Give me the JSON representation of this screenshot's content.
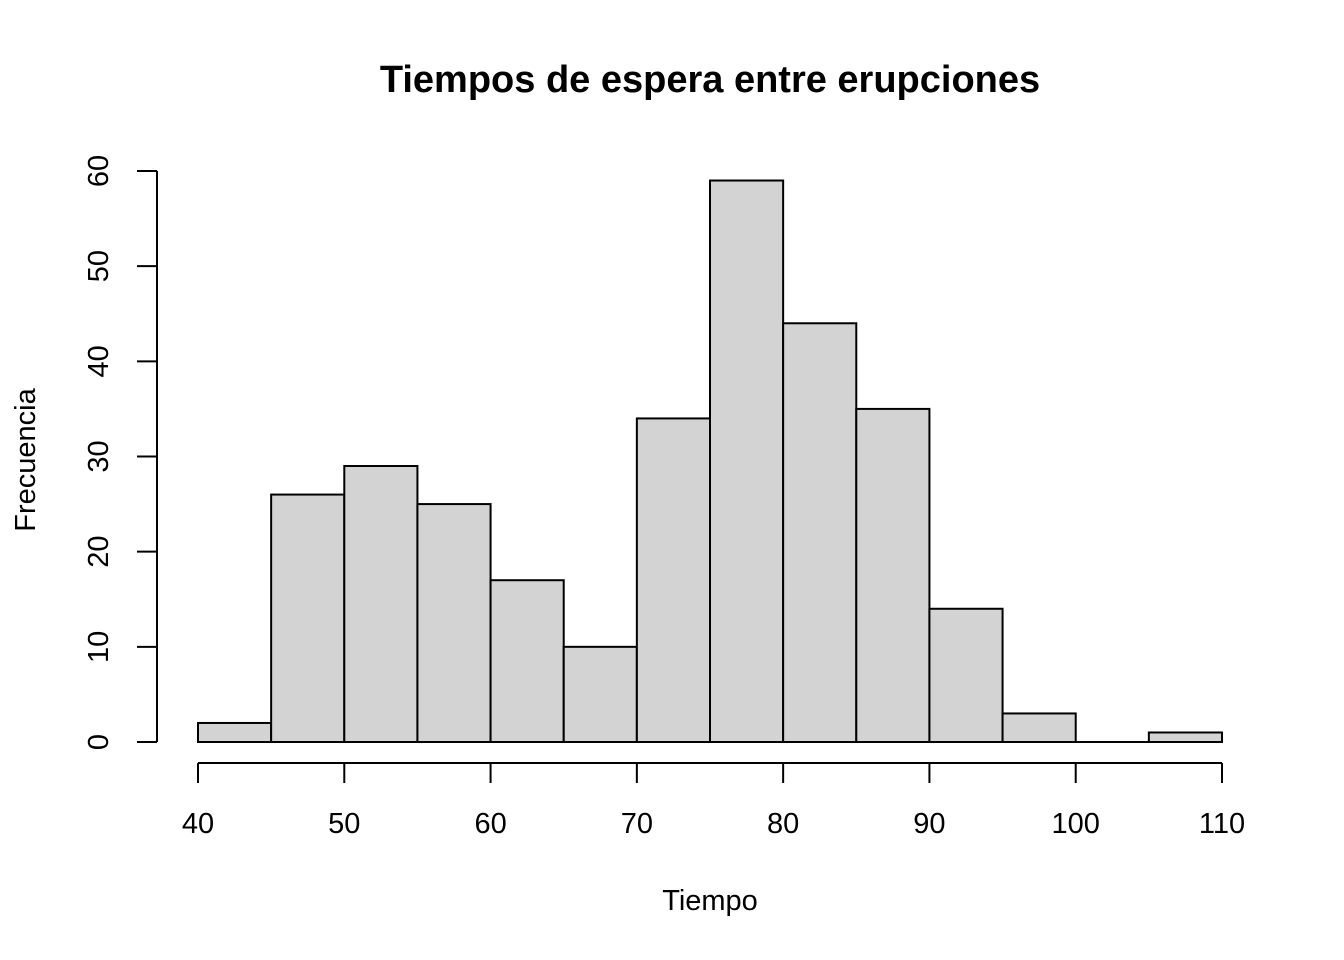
{
  "chart_data": {
    "type": "bar",
    "subtype": "histogram",
    "title": "Tiempos de espera entre erupciones",
    "xlabel": "Tiempo",
    "ylabel": "Frecuencia",
    "bins": [
      {
        "x0": 40,
        "x1": 45,
        "count": 2
      },
      {
        "x0": 45,
        "x1": 50,
        "count": 26
      },
      {
        "x0": 50,
        "x1": 55,
        "count": 29
      },
      {
        "x0": 55,
        "x1": 60,
        "count": 25
      },
      {
        "x0": 60,
        "x1": 65,
        "count": 17
      },
      {
        "x0": 65,
        "x1": 70,
        "count": 10
      },
      {
        "x0": 70,
        "x1": 75,
        "count": 34
      },
      {
        "x0": 75,
        "x1": 80,
        "count": 59
      },
      {
        "x0": 80,
        "x1": 85,
        "count": 44
      },
      {
        "x0": 85,
        "x1": 90,
        "count": 35
      },
      {
        "x0": 90,
        "x1": 95,
        "count": 14
      },
      {
        "x0": 95,
        "x1": 100,
        "count": 3
      },
      {
        "x0": 100,
        "x1": 105,
        "count": 0
      },
      {
        "x0": 105,
        "x1": 110,
        "count": 1
      }
    ],
    "xlim": [
      40,
      110
    ],
    "ylim": [
      0,
      60
    ],
    "xticks": [
      "40",
      "50",
      "60",
      "70",
      "80",
      "90",
      "100",
      "110"
    ],
    "yticks": [
      "0",
      "10",
      "20",
      "30",
      "40",
      "50",
      "60"
    ],
    "grid": false,
    "legend": "none",
    "bar_fill": "#d3d3d3",
    "bar_stroke": "#000000"
  }
}
